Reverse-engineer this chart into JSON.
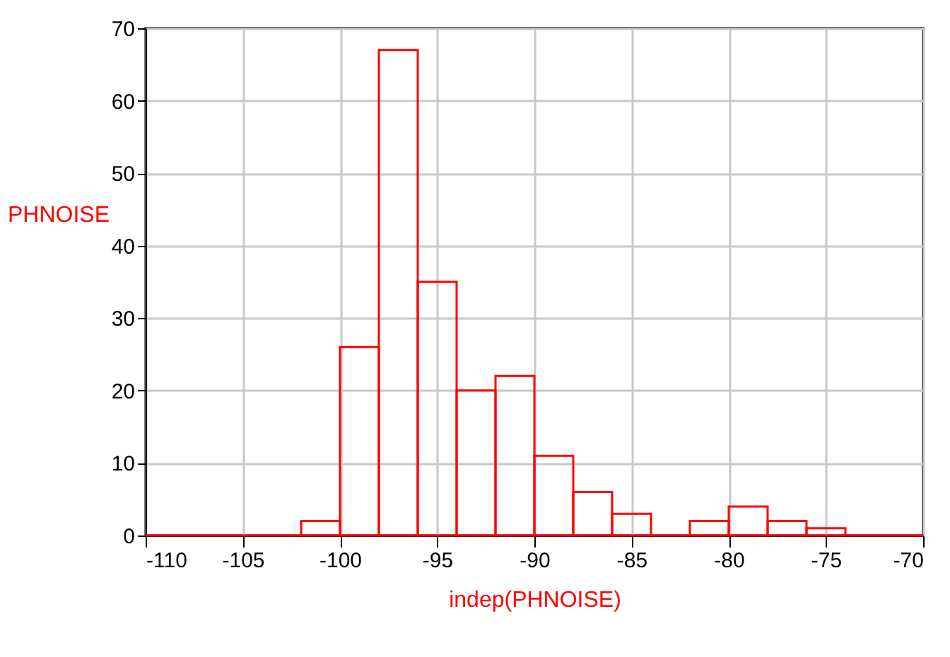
{
  "chart_data": {
    "type": "histogram",
    "xlabel": "indep(PHNOISE)",
    "ylabel": "PHNOISE",
    "color": "#ff0000",
    "bins": [
      -110,
      -108,
      -106,
      -104,
      -102,
      -100,
      -98,
      -96,
      -94,
      -92,
      -90,
      -88,
      -86,
      -84,
      -82,
      -80,
      -78,
      -76,
      -74,
      -72,
      -70
    ],
    "values": [
      0,
      0,
      0,
      0,
      2,
      26,
      67,
      35,
      20,
      22,
      11,
      6,
      3,
      0,
      2,
      4,
      2,
      1,
      0,
      0
    ],
    "xlim": [
      -110,
      -70
    ],
    "xticks": [
      -110,
      -105,
      -100,
      -95,
      -90,
      -85,
      -80,
      -75,
      -70
    ],
    "ylim": [
      0,
      70
    ],
    "yticks": [
      0,
      10,
      20,
      30,
      40,
      50,
      60,
      70
    ],
    "grid": true
  }
}
